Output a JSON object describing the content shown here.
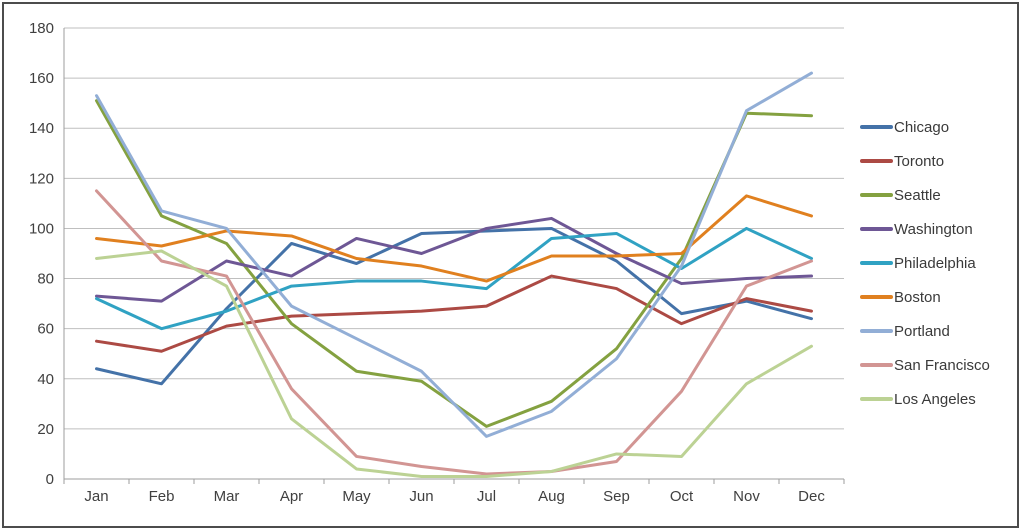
{
  "window": {
    "background_color": "#ffffff",
    "frame_border_color": "#4c4c4c"
  },
  "axes": {
    "gridline_color": "#bfbfbf",
    "axis_line_color": "#9e9e9e",
    "label_color": "#404040"
  },
  "chart_data": {
    "type": "line",
    "title": "",
    "xlabel": "",
    "ylabel": "",
    "ylim": [
      0,
      180
    ],
    "y_ticks": [
      0,
      20,
      40,
      60,
      80,
      100,
      120,
      140,
      160,
      180
    ],
    "grid": true,
    "legend_position": "right",
    "categories": [
      "Jan",
      "Feb",
      "Mar",
      "Apr",
      "May",
      "Jun",
      "Jul",
      "Aug",
      "Sep",
      "Oct",
      "Nov",
      "Dec"
    ],
    "series": [
      {
        "name": "Chicago",
        "color": "#4472a8",
        "values": [
          44,
          38,
          68,
          94,
          86,
          98,
          99,
          100,
          87,
          66,
          71,
          64
        ]
      },
      {
        "name": "Toronto",
        "color": "#ac4a44",
        "values": [
          55,
          51,
          61,
          65,
          66,
          67,
          69,
          81,
          76,
          62,
          72,
          67
        ]
      },
      {
        "name": "Seattle",
        "color": "#84a140",
        "values": [
          151,
          105,
          94,
          62,
          43,
          39,
          21,
          31,
          52,
          88,
          146,
          145
        ]
      },
      {
        "name": "Washington",
        "color": "#6e5795",
        "values": [
          73,
          71,
          87,
          81,
          96,
          90,
          100,
          104,
          90,
          78,
          80,
          81
        ]
      },
      {
        "name": "Philadelphia",
        "color": "#30a2c3",
        "values": [
          72,
          60,
          67,
          77,
          79,
          79,
          76,
          96,
          98,
          84,
          100,
          88
        ]
      },
      {
        "name": "Boston",
        "color": "#e0801f",
        "values": [
          96,
          93,
          99,
          97,
          88,
          85,
          79,
          89,
          89,
          90,
          113,
          105
        ]
      },
      {
        "name": "Portland",
        "color": "#92aed6",
        "values": [
          153,
          107,
          100,
          69,
          56,
          43,
          17,
          27,
          48,
          85,
          147,
          162
        ]
      },
      {
        "name": "San Francisco",
        "color": "#d29593",
        "values": [
          115,
          87,
          81,
          36,
          9,
          5,
          2,
          3,
          7,
          35,
          77,
          87
        ]
      },
      {
        "name": "Los Angeles",
        "color": "#bcd294",
        "values": [
          88,
          91,
          77,
          24,
          4,
          1,
          1,
          3,
          10,
          9,
          38,
          53
        ]
      }
    ]
  }
}
